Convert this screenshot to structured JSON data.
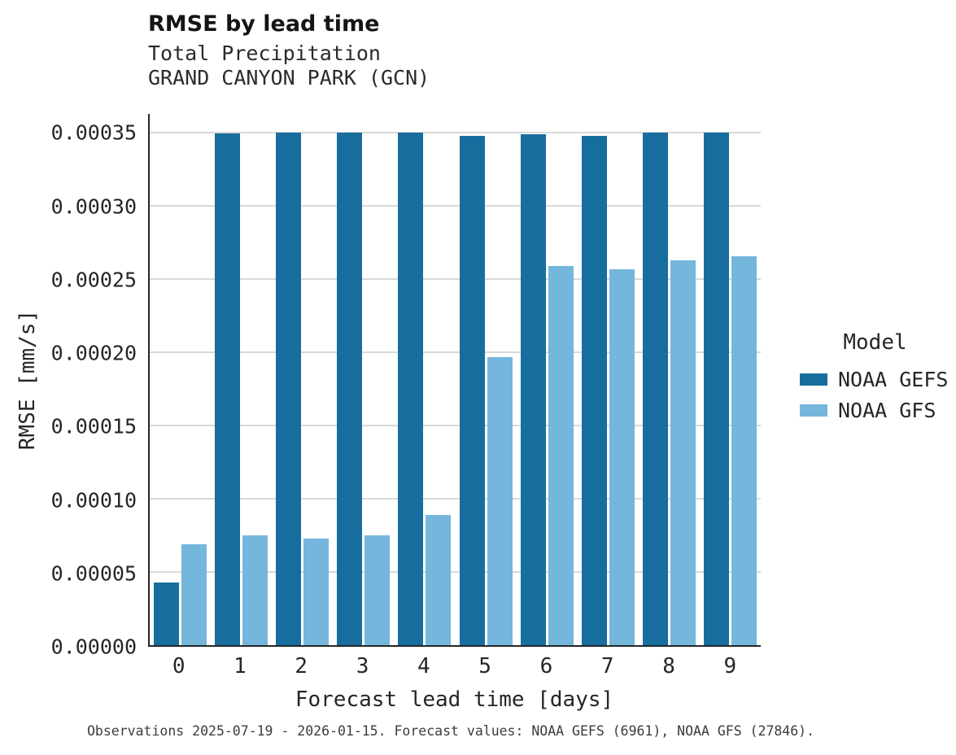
{
  "header": {
    "title": "RMSE by lead time",
    "subtitle_line1": "Total Precipitation",
    "subtitle_line2": "GRAND CANYON PARK (GCN)"
  },
  "caption": "Observations 2025-07-19 - 2026-01-15. Forecast values: NOAA GEFS (6961), NOAA GFS (27846).",
  "chart_data": {
    "type": "bar",
    "title": "RMSE by lead time",
    "subtitle": [
      "Total Precipitation",
      "GRAND CANYON PARK (GCN)"
    ],
    "xlabel": "Forecast lead time [days]",
    "ylabel": "RMSE [mm/s]",
    "categories": [
      "0",
      "1",
      "2",
      "3",
      "4",
      "5",
      "6",
      "7",
      "8",
      "9"
    ],
    "series": [
      {
        "name": "NOAA GEFS",
        "color": "#176e9e",
        "values": [
          4.3e-05,
          0.0003497,
          0.00035,
          0.00035,
          0.00035,
          0.000348,
          0.000349,
          0.000348,
          0.00035,
          0.00035
        ]
      },
      {
        "name": "NOAA GFS",
        "color": "#74b6dc",
        "values": [
          6.9e-05,
          7.5e-05,
          7.3e-05,
          7.5e-05,
          8.9e-05,
          0.000197,
          0.000259,
          0.000257,
          0.000263,
          0.000266
        ]
      }
    ],
    "yticks": [
      0,
      5e-05,
      0.0001,
      0.00015,
      0.0002,
      0.00025,
      0.0003,
      0.00035
    ],
    "ytick_labels": [
      "0.00000",
      "0.00005",
      "0.00010",
      "0.00015",
      "0.00020",
      "0.00025",
      "0.00030",
      "0.00035"
    ],
    "ylim": [
      0,
      0.000363
    ],
    "legend_title": "Model",
    "legend_position": "right",
    "grid": true,
    "colors": {
      "grid": "#d9d9d9",
      "spine": "#262626",
      "text": "#262626"
    }
  }
}
